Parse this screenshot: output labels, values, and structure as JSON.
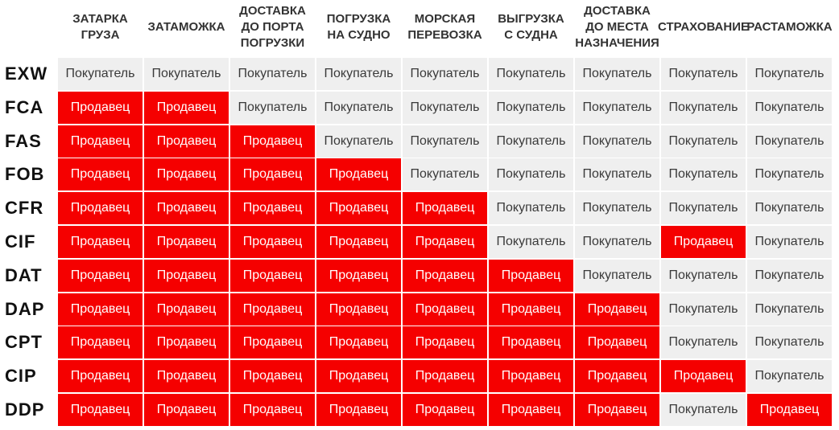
{
  "labels": {
    "buyer": "Покупатель",
    "seller": "Продавец"
  },
  "colors": {
    "seller": "#f50000",
    "buyer": "#efefef"
  },
  "columns": [
    "ЗАТАРКА\nГРУЗА",
    "ЗАТАМОЖКА",
    "ДОСТАВКА\nДО ПОРТА\nПОГРУЗКИ",
    "ПОГРУЗКА\nНА СУДНО",
    "МОРСКАЯ\nПЕРЕВОЗКА",
    "ВЫГРУЗКА\nС СУДНА",
    "ДОСТАВКА\nДО МЕСТА\nНАЗНАЧЕНИЯ",
    "СТРАХОВАНИЕ",
    "РАСТАМОЖКА"
  ],
  "rows": [
    {
      "term": "EXW",
      "cells": [
        "buyer",
        "buyer",
        "buyer",
        "buyer",
        "buyer",
        "buyer",
        "buyer",
        "buyer",
        "buyer"
      ]
    },
    {
      "term": "FCA",
      "cells": [
        "seller",
        "seller",
        "buyer",
        "buyer",
        "buyer",
        "buyer",
        "buyer",
        "buyer",
        "buyer"
      ]
    },
    {
      "term": "FAS",
      "cells": [
        "seller",
        "seller",
        "seller",
        "buyer",
        "buyer",
        "buyer",
        "buyer",
        "buyer",
        "buyer"
      ]
    },
    {
      "term": "FOB",
      "cells": [
        "seller",
        "seller",
        "seller",
        "seller",
        "buyer",
        "buyer",
        "buyer",
        "buyer",
        "buyer"
      ]
    },
    {
      "term": "CFR",
      "cells": [
        "seller",
        "seller",
        "seller",
        "seller",
        "seller",
        "buyer",
        "buyer",
        "buyer",
        "buyer"
      ]
    },
    {
      "term": "CIF",
      "cells": [
        "seller",
        "seller",
        "seller",
        "seller",
        "seller",
        "buyer",
        "buyer",
        "seller",
        "buyer"
      ]
    },
    {
      "term": "DAT",
      "cells": [
        "seller",
        "seller",
        "seller",
        "seller",
        "seller",
        "seller",
        "buyer",
        "buyer",
        "buyer"
      ]
    },
    {
      "term": "DAP",
      "cells": [
        "seller",
        "seller",
        "seller",
        "seller",
        "seller",
        "seller",
        "seller",
        "buyer",
        "buyer"
      ]
    },
    {
      "term": "CPT",
      "cells": [
        "seller",
        "seller",
        "seller",
        "seller",
        "seller",
        "seller",
        "seller",
        "buyer",
        "buyer"
      ]
    },
    {
      "term": "CIP",
      "cells": [
        "seller",
        "seller",
        "seller",
        "seller",
        "seller",
        "seller",
        "seller",
        "seller",
        "buyer"
      ]
    },
    {
      "term": "DDP",
      "cells": [
        "seller",
        "seller",
        "seller",
        "seller",
        "seller",
        "seller",
        "seller",
        "buyer",
        "seller"
      ]
    }
  ]
}
